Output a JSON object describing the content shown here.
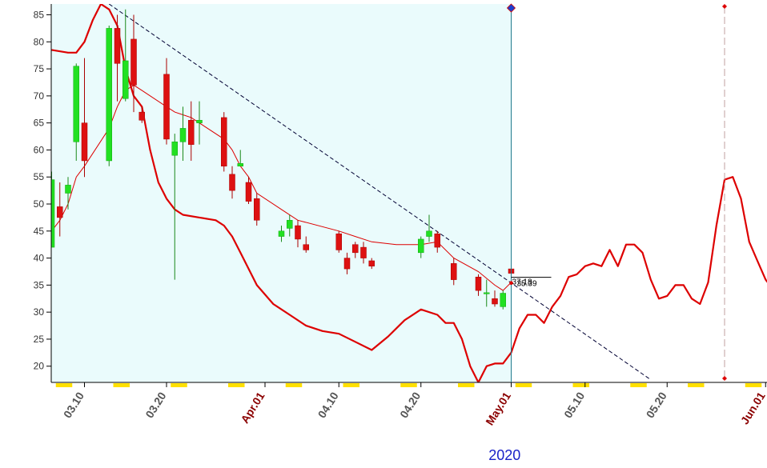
{
  "chart_data": {
    "type": "candlestick",
    "year_label": "2020",
    "y_axis": {
      "ticks": [
        20,
        25,
        30,
        35,
        40,
        45,
        50,
        55,
        60,
        65,
        70,
        75,
        80,
        85
      ],
      "range": [
        17,
        87
      ],
      "side": "left",
      "grid": false
    },
    "x_axis": {
      "range": [
        "2020-03-06",
        "2020-06-02"
      ],
      "ticks": [
        {
          "date": "2020-03-10",
          "label": "03.10",
          "month_start": false
        },
        {
          "date": "2020-03-20",
          "label": "03.20",
          "month_start": false
        },
        {
          "date": "2020-04-01",
          "label": "Apr.01",
          "month_start": true
        },
        {
          "date": "2020-04-10",
          "label": "04.10",
          "month_start": false
        },
        {
          "date": "2020-04-20",
          "label": "04.20",
          "month_start": false
        },
        {
          "date": "2020-05-01",
          "label": "May.01",
          "month_start": true
        },
        {
          "date": "2020-05-10",
          "label": "05.10",
          "month_start": false
        },
        {
          "date": "2020-05-20",
          "label": "05.20",
          "month_start": false
        },
        {
          "date": "2020-06-01",
          "label": "Jun.01",
          "month_start": true
        }
      ]
    },
    "history_end_date": "2020-05-01",
    "marker_dates": [
      "2020-05-01",
      "2020-05-27"
    ],
    "candles": [
      {
        "date": "2020-03-06",
        "open": 42,
        "high": 56,
        "low": 42,
        "close": 54.5
      },
      {
        "date": "2020-03-07",
        "open": 49.5,
        "high": 54,
        "low": 44,
        "close": 47.5
      },
      {
        "date": "2020-03-08",
        "open": 52,
        "high": 55,
        "low": 49,
        "close": 53.5
      },
      {
        "date": "2020-03-09",
        "open": 61.5,
        "high": 76,
        "low": 58,
        "close": 75.5
      },
      {
        "date": "2020-03-10",
        "open": 65,
        "high": 77,
        "low": 55,
        "close": 58
      },
      {
        "date": "2020-03-13",
        "open": 58,
        "high": 83,
        "low": 57,
        "close": 82.5
      },
      {
        "date": "2020-03-14",
        "open": 82.5,
        "high": 85,
        "low": 69,
        "close": 76
      },
      {
        "date": "2020-03-15",
        "open": 69.5,
        "high": 86,
        "low": 69,
        "close": 76.5
      },
      {
        "date": "2020-03-16",
        "open": 80.5,
        "high": 85,
        "low": 67,
        "close": 72
      },
      {
        "date": "2020-03-17",
        "open": 67,
        "high": 68,
        "low": 65,
        "close": 65.5
      },
      {
        "date": "2020-03-20",
        "open": 74,
        "high": 77,
        "low": 61,
        "close": 62
      },
      {
        "date": "2020-03-21",
        "open": 59,
        "high": 63,
        "low": 36,
        "close": 61.5
      },
      {
        "date": "2020-03-22",
        "open": 61.5,
        "high": 68,
        "low": 58,
        "close": 64
      },
      {
        "date": "2020-03-23",
        "open": 65.5,
        "high": 69,
        "low": 58,
        "close": 61
      },
      {
        "date": "2020-03-24",
        "open": 65,
        "high": 69,
        "low": 61,
        "close": 65.5
      },
      {
        "date": "2020-03-27",
        "open": 66,
        "high": 67,
        "low": 56,
        "close": 57
      },
      {
        "date": "2020-03-28",
        "open": 55.5,
        "high": 57,
        "low": 51,
        "close": 52.5
      },
      {
        "date": "2020-03-29",
        "open": 57,
        "high": 60,
        "low": 57,
        "close": 57.5
      },
      {
        "date": "2020-03-30",
        "open": 54,
        "high": 55,
        "low": 50,
        "close": 50.5
      },
      {
        "date": "2020-03-31",
        "open": 51,
        "high": 52,
        "low": 46,
        "close": 47
      },
      {
        "date": "2020-04-03",
        "open": 44,
        "high": 46,
        "low": 43,
        "close": 45
      },
      {
        "date": "2020-04-04",
        "open": 45.5,
        "high": 48,
        "low": 44,
        "close": 47
      },
      {
        "date": "2020-04-05",
        "open": 46,
        "high": 47,
        "low": 42,
        "close": 43.5
      },
      {
        "date": "2020-04-06",
        "open": 42.5,
        "high": 44,
        "low": 41,
        "close": 41.5
      },
      {
        "date": "2020-04-10",
        "open": 44.5,
        "high": 45,
        "low": 41,
        "close": 41.5
      },
      {
        "date": "2020-04-11",
        "open": 40,
        "high": 41,
        "low": 37,
        "close": 38
      },
      {
        "date": "2020-04-12",
        "open": 42.5,
        "high": 43,
        "low": 40,
        "close": 41
      },
      {
        "date": "2020-04-13",
        "open": 42,
        "high": 43,
        "low": 39,
        "close": 40
      },
      {
        "date": "2020-04-14",
        "open": 39.5,
        "high": 40,
        "low": 38,
        "close": 38.5
      },
      {
        "date": "2020-04-20",
        "open": 41,
        "high": 44,
        "low": 40,
        "close": 43.5
      },
      {
        "date": "2020-04-21",
        "open": 44,
        "high": 48,
        "low": 43,
        "close": 45
      },
      {
        "date": "2020-04-22",
        "open": 44.5,
        "high": 45,
        "low": 41,
        "close": 42
      },
      {
        "date": "2020-04-24",
        "open": 39,
        "high": 40,
        "low": 35,
        "close": 36
      },
      {
        "date": "2020-04-27",
        "open": 36.5,
        "high": 37,
        "low": 33,
        "close": 34
      },
      {
        "date": "2020-04-28",
        "open": 33.5,
        "high": 36,
        "low": 31,
        "close": 33.6
      },
      {
        "date": "2020-04-29",
        "open": 32.5,
        "high": 34,
        "low": 31,
        "close": 31.5
      },
      {
        "date": "2020-04-30",
        "open": 31,
        "high": 34,
        "low": 30.5,
        "close": 33.5
      },
      {
        "date": "2020-05-01",
        "open": 38,
        "high": 38.5,
        "low": 37,
        "close": 37.18
      }
    ],
    "moving_average": {
      "color": "#dd0000",
      "points": [
        [
          "2020-03-06",
          45
        ],
        [
          "2020-03-07",
          47
        ],
        [
          "2020-03-08",
          50
        ],
        [
          "2020-03-09",
          55
        ],
        [
          "2020-03-10",
          57
        ],
        [
          "2020-03-13",
          64
        ],
        [
          "2020-03-14",
          68
        ],
        [
          "2020-03-15",
          71
        ],
        [
          "2020-03-16",
          72
        ],
        [
          "2020-03-17",
          71
        ],
        [
          "2020-03-20",
          68
        ],
        [
          "2020-03-21",
          67
        ],
        [
          "2020-03-22",
          66.5
        ],
        [
          "2020-03-23",
          66
        ],
        [
          "2020-03-24",
          65
        ],
        [
          "2020-03-27",
          62
        ],
        [
          "2020-03-28",
          60
        ],
        [
          "2020-03-29",
          57
        ],
        [
          "2020-03-30",
          55
        ],
        [
          "2020-03-31",
          52
        ],
        [
          "2020-04-03",
          49
        ],
        [
          "2020-04-05",
          47
        ],
        [
          "2020-04-10",
          45
        ],
        [
          "2020-04-12",
          44
        ],
        [
          "2020-04-14",
          43
        ],
        [
          "2020-04-17",
          42.5
        ],
        [
          "2020-04-20",
          42.5
        ],
        [
          "2020-04-22",
          43
        ],
        [
          "2020-04-24",
          40
        ],
        [
          "2020-04-27",
          37.5
        ],
        [
          "2020-04-29",
          35
        ],
        [
          "2020-04-30",
          34
        ],
        [
          "2020-05-01",
          35.5
        ]
      ]
    },
    "forecast_line": {
      "color": "#dd0000",
      "points": [
        [
          "2020-03-06",
          78.5
        ],
        [
          "2020-03-08",
          78
        ],
        [
          "2020-03-09",
          78
        ],
        [
          "2020-03-10",
          80
        ],
        [
          "2020-03-11",
          84
        ],
        [
          "2020-03-12",
          87
        ],
        [
          "2020-03-13",
          86
        ],
        [
          "2020-03-14",
          83
        ],
        [
          "2020-03-15",
          75
        ],
        [
          "2020-03-16",
          70
        ],
        [
          "2020-03-17",
          68
        ],
        [
          "2020-03-18",
          60
        ],
        [
          "2020-03-19",
          54
        ],
        [
          "2020-03-20",
          51
        ],
        [
          "2020-03-21",
          49
        ],
        [
          "2020-03-22",
          48
        ],
        [
          "2020-03-24",
          47.5
        ],
        [
          "2020-03-26",
          47
        ],
        [
          "2020-03-27",
          46
        ],
        [
          "2020-03-28",
          44
        ],
        [
          "2020-03-29",
          41
        ],
        [
          "2020-03-31",
          35
        ],
        [
          "2020-04-02",
          31.5
        ],
        [
          "2020-04-04",
          29.5
        ],
        [
          "2020-04-06",
          27.5
        ],
        [
          "2020-04-08",
          26.5
        ],
        [
          "2020-04-10",
          26
        ],
        [
          "2020-04-12",
          24.5
        ],
        [
          "2020-04-14",
          23
        ],
        [
          "2020-04-16",
          25.5
        ],
        [
          "2020-04-18",
          28.5
        ],
        [
          "2020-04-20",
          30.5
        ],
        [
          "2020-04-22",
          29.5
        ],
        [
          "2020-04-23",
          28
        ],
        [
          "2020-04-24",
          28
        ],
        [
          "2020-04-25",
          25
        ],
        [
          "2020-04-26",
          20
        ],
        [
          "2020-04-27",
          17
        ],
        [
          "2020-04-28",
          20
        ],
        [
          "2020-04-29",
          20.5
        ],
        [
          "2020-04-30",
          20.5
        ],
        [
          "2020-05-01",
          22.5
        ],
        [
          "2020-05-02",
          27
        ],
        [
          "2020-05-03",
          29.5
        ],
        [
          "2020-05-04",
          29.5
        ],
        [
          "2020-05-05",
          28
        ],
        [
          "2020-05-06",
          31
        ],
        [
          "2020-05-07",
          33
        ],
        [
          "2020-05-08",
          36.5
        ],
        [
          "2020-05-09",
          37
        ],
        [
          "2020-05-10",
          38.5
        ],
        [
          "2020-05-11",
          39
        ],
        [
          "2020-05-12",
          38.5
        ],
        [
          "2020-05-13",
          41.5
        ],
        [
          "2020-05-14",
          38.5
        ],
        [
          "2020-05-15",
          42.5
        ],
        [
          "2020-05-16",
          42.5
        ],
        [
          "2020-05-17",
          41
        ],
        [
          "2020-05-18",
          36
        ],
        [
          "2020-05-19",
          32.5
        ],
        [
          "2020-05-20",
          33
        ],
        [
          "2020-05-21",
          35
        ],
        [
          "2020-05-22",
          35
        ],
        [
          "2020-05-23",
          32.5
        ],
        [
          "2020-05-24",
          31.5
        ],
        [
          "2020-05-25",
          35.5
        ],
        [
          "2020-05-26",
          46
        ],
        [
          "2020-05-27",
          54.5
        ],
        [
          "2020-05-28",
          55
        ],
        [
          "2020-05-29",
          51
        ],
        [
          "2020-05-30",
          43
        ],
        [
          "2020-05-31",
          39.5
        ],
        [
          "2020-06-01",
          36
        ],
        [
          "2020-06-02",
          34
        ]
      ]
    },
    "trend_line": {
      "style": "dashed",
      "points": [
        [
          "2020-03-13",
          87
        ],
        [
          "2020-05-18",
          17.5
        ]
      ]
    },
    "labels": [
      {
        "text": "37.18",
        "date": "2020-05-01",
        "value": 37.18,
        "kind": "last_close"
      },
      {
        "text": "35.39",
        "date": "2020-05-01",
        "value": 35.39,
        "kind": "indicator"
      }
    ],
    "colors": {
      "up": "#22e022",
      "down": "#dd1111",
      "history_background": "#eafbfc",
      "month_tick": "#8b0000",
      "day_tick": "#555555",
      "year": "#1a22c8",
      "axis_marks": "#ffe000"
    }
  }
}
